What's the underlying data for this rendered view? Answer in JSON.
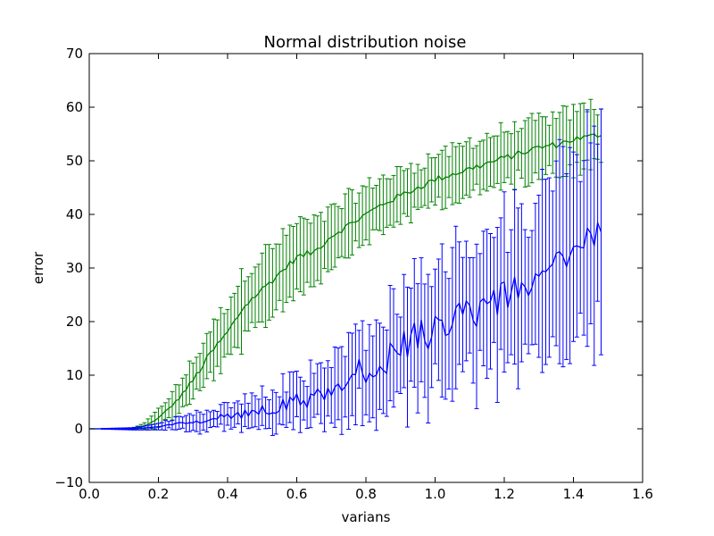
{
  "chart_data": {
    "type": "line",
    "title": "Normal distribution noise",
    "xlabel": "varians",
    "ylabel": "error",
    "xlim": [
      0.0,
      1.6
    ],
    "ylim": [
      -10,
      70
    ],
    "xticks": [
      "0.0",
      "0.2",
      "0.4",
      "0.6",
      "0.8",
      "1.0",
      "1.2",
      "1.4",
      "1.6"
    ],
    "yticks": [
      "−10",
      "0",
      "10",
      "20",
      "30",
      "40",
      "50",
      "60",
      "70"
    ],
    "grid": false,
    "legend": "none",
    "x": {
      "start": 0.0,
      "step": 0.01,
      "count": 149
    },
    "series": [
      {
        "color": "#008000",
        "points": [
          [
            0.0,
            0,
            0
          ],
          [
            0.1,
            0,
            0
          ],
          [
            0.13,
            0,
            0.2
          ],
          [
            0.15,
            0.3,
            0.5
          ],
          [
            0.17,
            0.8,
            0.8
          ],
          [
            0.2,
            2,
            1.5
          ],
          [
            0.25,
            5,
            2.5
          ],
          [
            0.3,
            9,
            3.5
          ],
          [
            0.35,
            14,
            4.5
          ],
          [
            0.4,
            18,
            5.5
          ],
          [
            0.45,
            23,
            6.5
          ],
          [
            0.5,
            26,
            6.5
          ],
          [
            0.55,
            29,
            6
          ],
          [
            0.6,
            32,
            6.5
          ],
          [
            0.65,
            33,
            5.5
          ],
          [
            0.7,
            36,
            5
          ],
          [
            0.75,
            38,
            5
          ],
          [
            0.8,
            40,
            5
          ],
          [
            0.85,
            42,
            5
          ],
          [
            0.9,
            43.5,
            4.5
          ],
          [
            0.95,
            45,
            4.5
          ],
          [
            1.0,
            46.5,
            4.5
          ],
          [
            1.05,
            47.5,
            4.5
          ],
          [
            1.1,
            48.5,
            5
          ],
          [
            1.15,
            49.5,
            5
          ],
          [
            1.2,
            50.5,
            5
          ],
          [
            1.25,
            51.5,
            5
          ],
          [
            1.3,
            52.5,
            5
          ],
          [
            1.35,
            53,
            5
          ],
          [
            1.4,
            54,
            5.5
          ],
          [
            1.45,
            54.5,
            5.5
          ],
          [
            1.48,
            55,
            5.5
          ]
        ]
      },
      {
        "color": "#0000ff",
        "points": [
          [
            0.0,
            0,
            0
          ],
          [
            0.12,
            0,
            0.2
          ],
          [
            0.15,
            0.1,
            0.3
          ],
          [
            0.2,
            0.4,
            0.6
          ],
          [
            0.25,
            0.8,
            1
          ],
          [
            0.3,
            1.2,
            1.5
          ],
          [
            0.35,
            1.8,
            1.8
          ],
          [
            0.4,
            2.4,
            2.2
          ],
          [
            0.45,
            3,
            2.6
          ],
          [
            0.5,
            3.6,
            3
          ],
          [
            0.55,
            4.2,
            3.5
          ],
          [
            0.6,
            5,
            4.5
          ],
          [
            0.65,
            6,
            5
          ],
          [
            0.7,
            7.5,
            6
          ],
          [
            0.75,
            9,
            7
          ],
          [
            0.8,
            11,
            8
          ],
          [
            0.85,
            13,
            9
          ],
          [
            0.9,
            15,
            10
          ],
          [
            0.95,
            17,
            10.5
          ],
          [
            1.0,
            18.5,
            11
          ],
          [
            1.05,
            20,
            12
          ],
          [
            1.1,
            21,
            12
          ],
          [
            1.15,
            22.5,
            12.5
          ],
          [
            1.2,
            24.5,
            13
          ],
          [
            1.25,
            27,
            14
          ],
          [
            1.3,
            29,
            15
          ],
          [
            1.35,
            31,
            16
          ],
          [
            1.4,
            33,
            17
          ],
          [
            1.45,
            35,
            18
          ],
          [
            1.48,
            37,
            19
          ]
        ]
      }
    ]
  }
}
